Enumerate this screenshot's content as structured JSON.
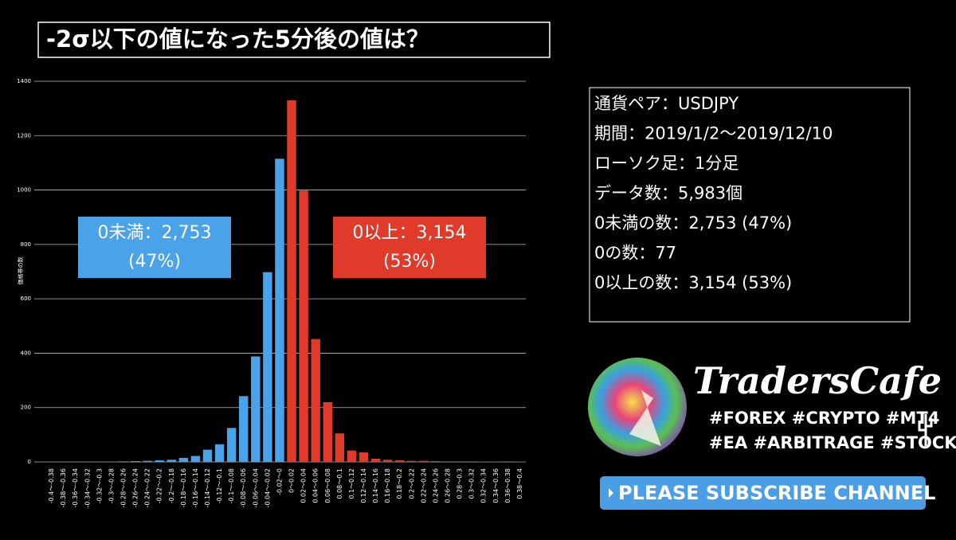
{
  "chart_data": {
    "type": "bar",
    "title": "-2σ以下の値になった5分後の値は？",
    "y_label": "価格帯の数",
    "categories": [
      "-0.4～-0.38",
      "-0.38～-0.36",
      "-0.36～-0.34",
      "-0.34～-0.32",
      "-0.32～-0.3",
      "-0.3～-0.28",
      "-0.28～-0.26",
      "-0.26～-0.24",
      "-0.24～-0.22",
      "-0.22～-0.2",
      "-0.2～-0.18",
      "-0.18～-0.16",
      "-0.16～-0.14",
      "-0.14～-0.12",
      "-0.12～-0.1",
      "-0.1～-0.08",
      "-0.08～-0.06",
      "-0.06～-0.04",
      "-0.04～-0.02",
      "-0.02～0",
      "0～0.02",
      "0.02～0.04",
      "0.04～0.06",
      "0.06～0.08",
      "0.08～0.1",
      "0.1～0.12",
      "0.12～0.14",
      "0.14～0.16",
      "0.16～0.18",
      "0.18～0.2",
      "0.2～0.22",
      "0.22～0.24",
      "0.24～0.26",
      "0.26～0.28",
      "0.28～0.3",
      "0.3～0.32",
      "0.32～0.34",
      "0.34～0.36",
      "0.36～0.38",
      "0.38～0.4"
    ],
    "values": [
      0,
      0,
      0,
      0,
      0,
      0,
      2,
      3,
      4,
      6,
      8,
      15,
      22,
      45,
      65,
      125,
      242,
      388,
      698,
      1115,
      1330,
      998,
      452,
      220,
      105,
      42,
      35,
      12,
      8,
      6,
      4,
      4,
      3,
      2,
      2,
      2,
      1,
      1,
      2,
      1
    ],
    "colors": [
      "#4aa3e8",
      "#4aa3e8",
      "#4aa3e8",
      "#4aa3e8",
      "#4aa3e8",
      "#4aa3e8",
      "#4aa3e8",
      "#4aa3e8",
      "#4aa3e8",
      "#4aa3e8",
      "#4aa3e8",
      "#4aa3e8",
      "#4aa3e8",
      "#4aa3e8",
      "#4aa3e8",
      "#4aa3e8",
      "#4aa3e8",
      "#4aa3e8",
      "#4aa3e8",
      "#4aa3e8",
      "#e03a2a",
      "#e03a2a",
      "#e03a2a",
      "#e03a2a",
      "#e03a2a",
      "#e03a2a",
      "#e03a2a",
      "#e03a2a",
      "#e03a2a",
      "#e03a2a",
      "#e03a2a",
      "#e03a2a",
      "#e03a2a",
      "#e03a2a",
      "#e03a2a",
      "#e03a2a",
      "#e03a2a",
      "#e03a2a",
      "#e03a2a",
      "#e03a2a"
    ],
    "ylim": [
      0,
      1400
    ],
    "yticks": [
      0,
      200,
      400,
      600,
      800,
      1000,
      1200,
      1400
    ],
    "grid": true,
    "annotations": [
      {
        "lines": [
          "0未満：2,753",
          "(47%)"
        ],
        "color": "#4aa3e8"
      },
      {
        "lines": [
          "0以上：3,154",
          "(53%)"
        ],
        "color": "#e03a2a"
      }
    ]
  },
  "info_panel": {
    "lines": [
      "通貨ペア：USDJPY",
      "期間：2019/1/2～2019/12/10",
      "ローソク足：1分足",
      "データ数：5,983個",
      "0未満の数：2,753 (47%)",
      "0の数：77",
      "0以上の数：3,154 (53%)"
    ]
  },
  "branding": {
    "name": "TradersCafe",
    "tags": [
      "#FOREX #CRYPTO #MT4",
      "#EA #ARBITRAGE #STOCK"
    ],
    "button": "PLEASE SUBSCRIBE CHANNEL"
  }
}
